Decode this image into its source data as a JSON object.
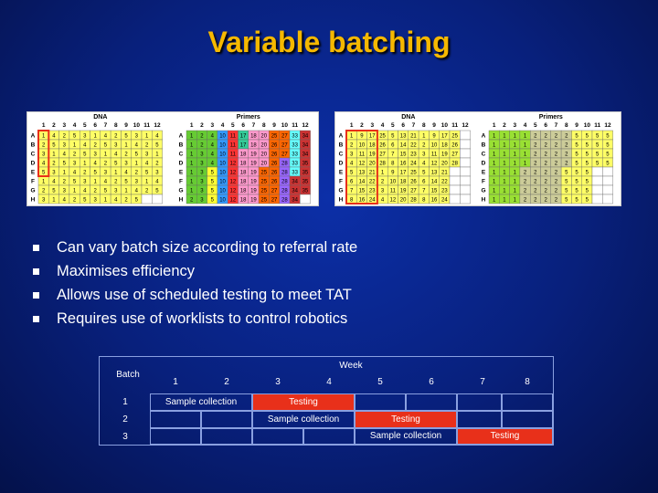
{
  "slide": {
    "title": "Variable batching",
    "bullets": [
      "Can vary batch size according to referral rate",
      "Maximises efficiency",
      "Allows use of scheduled testing to meet TAT",
      "Requires use of worklists to control robotics"
    ]
  },
  "plates": {
    "left": {
      "dna_label": "DNA",
      "primers_label": "Primers",
      "columns": [
        "1",
        "2",
        "3",
        "4",
        "5",
        "6",
        "7",
        "8",
        "9",
        "10",
        "11",
        "12"
      ],
      "rows": [
        "A",
        "B",
        "C",
        "D",
        "E",
        "F",
        "G",
        "H"
      ],
      "dna_values": [
        [
          1,
          4,
          2,
          5,
          3,
          1,
          4,
          2,
          5,
          3,
          1,
          4
        ],
        [
          2,
          5,
          3,
          1,
          4,
          2,
          5,
          3,
          1,
          4,
          2,
          5
        ],
        [
          3,
          1,
          4,
          2,
          5,
          3,
          1,
          4,
          2,
          5,
          3,
          1
        ],
        [
          4,
          2,
          5,
          3,
          1,
          4,
          2,
          5,
          3,
          1,
          4,
          2
        ],
        [
          5,
          3,
          1,
          4,
          2,
          5,
          3,
          1,
          4,
          2,
          5,
          3
        ],
        [
          1,
          4,
          2,
          5,
          3,
          1,
          4,
          2,
          5,
          3,
          1,
          4
        ],
        [
          2,
          5,
          3,
          1,
          4,
          2,
          5,
          3,
          1,
          4,
          2,
          5
        ],
        [
          3,
          1,
          4,
          2,
          5,
          3,
          1,
          4,
          2,
          5,
          "",
          ""
        ]
      ],
      "primer_values": [
        [
          1,
          2,
          4,
          10,
          11,
          17,
          18,
          20,
          25,
          27,
          33,
          34
        ],
        [
          1,
          2,
          4,
          10,
          11,
          17,
          18,
          20,
          26,
          27,
          33,
          34
        ],
        [
          1,
          3,
          4,
          10,
          11,
          18,
          19,
          20,
          26,
          27,
          33,
          34
        ],
        [
          1,
          3,
          4,
          10,
          12,
          18,
          19,
          20,
          26,
          28,
          33,
          35
        ],
        [
          1,
          3,
          5,
          10,
          12,
          18,
          19,
          25,
          26,
          28,
          33,
          35
        ],
        [
          1,
          3,
          5,
          10,
          12,
          18,
          19,
          25,
          26,
          28,
          34,
          35
        ],
        [
          1,
          3,
          5,
          10,
          12,
          18,
          19,
          25,
          27,
          28,
          34,
          35
        ],
        [
          2,
          3,
          5,
          10,
          12,
          18,
          19,
          25,
          27,
          28,
          34,
          ""
        ]
      ]
    },
    "right": {
      "dna_label": "DNA",
      "primers_label": "Primers",
      "columns": [
        "1",
        "2",
        "3",
        "4",
        "5",
        "6",
        "7",
        "8",
        "9",
        "10",
        "11",
        "12"
      ],
      "rows": [
        "A",
        "B",
        "C",
        "D",
        "E",
        "F",
        "G",
        "H"
      ],
      "dna_values": [
        [
          1,
          9,
          17,
          25,
          5,
          13,
          21,
          1,
          9,
          17,
          25,
          ""
        ],
        [
          2,
          10,
          18,
          26,
          6,
          14,
          22,
          2,
          10,
          18,
          26,
          ""
        ],
        [
          3,
          11,
          19,
          27,
          7,
          15,
          23,
          3,
          11,
          19,
          27,
          ""
        ],
        [
          4,
          12,
          20,
          28,
          8,
          16,
          24,
          4,
          12,
          20,
          28,
          ""
        ],
        [
          5,
          13,
          21,
          1,
          9,
          17,
          25,
          5,
          13,
          21,
          "",
          ""
        ],
        [
          6,
          14,
          22,
          2,
          10,
          18,
          26,
          6,
          14,
          22,
          "",
          ""
        ],
        [
          7,
          15,
          23,
          3,
          11,
          19,
          27,
          7,
          15,
          23,
          "",
          ""
        ],
        [
          8,
          16,
          24,
          4,
          12,
          20,
          28,
          8,
          16,
          24,
          "",
          ""
        ]
      ],
      "primer_values": [
        [
          1,
          1,
          1,
          1,
          2,
          2,
          2,
          2,
          5,
          5,
          5,
          5
        ],
        [
          1,
          1,
          1,
          1,
          2,
          2,
          2,
          2,
          5,
          5,
          5,
          5
        ],
        [
          1,
          1,
          1,
          1,
          2,
          2,
          2,
          2,
          5,
          5,
          5,
          5
        ],
        [
          1,
          1,
          1,
          1,
          2,
          2,
          2,
          2,
          5,
          5,
          5,
          5
        ],
        [
          1,
          1,
          1,
          2,
          2,
          2,
          2,
          5,
          5,
          5,
          "",
          ""
        ],
        [
          1,
          1,
          1,
          2,
          2,
          2,
          2,
          5,
          5,
          5,
          "",
          ""
        ],
        [
          1,
          1,
          1,
          2,
          2,
          2,
          2,
          5,
          5,
          5,
          "",
          ""
        ],
        [
          1,
          1,
          1,
          2,
          2,
          2,
          2,
          5,
          5,
          5,
          "",
          ""
        ]
      ]
    },
    "colors": {
      "dna": {
        "1": "#ffff66",
        "2": "#ffff66",
        "3": "#ffff66",
        "4": "#ffff66",
        "5": "#ffff66"
      },
      "primer_scale": [
        "#66cc33",
        "#ffff33",
        "#3399ff",
        "#ff3333",
        "#33cc99",
        "#ff99cc",
        "#ffcc33",
        "#ff6600",
        "#9966ff",
        "#66ffff",
        "#cc3333"
      ],
      "right_primer": {
        "1": "#99e033",
        "2": "#cccc99",
        "5": "#ffff66"
      },
      "highlight": "#e8301a"
    }
  },
  "schedule": {
    "week_label": "Week",
    "batch_label": "Batch",
    "weeks": [
      "1",
      "2",
      "3",
      "4",
      "5",
      "6",
      "7",
      "8"
    ],
    "batches": [
      "1",
      "2",
      "3"
    ],
    "sample_collection_label": "Sample collection",
    "testing_label": "Testing",
    "colors": {
      "testing": "#e8301a"
    }
  }
}
